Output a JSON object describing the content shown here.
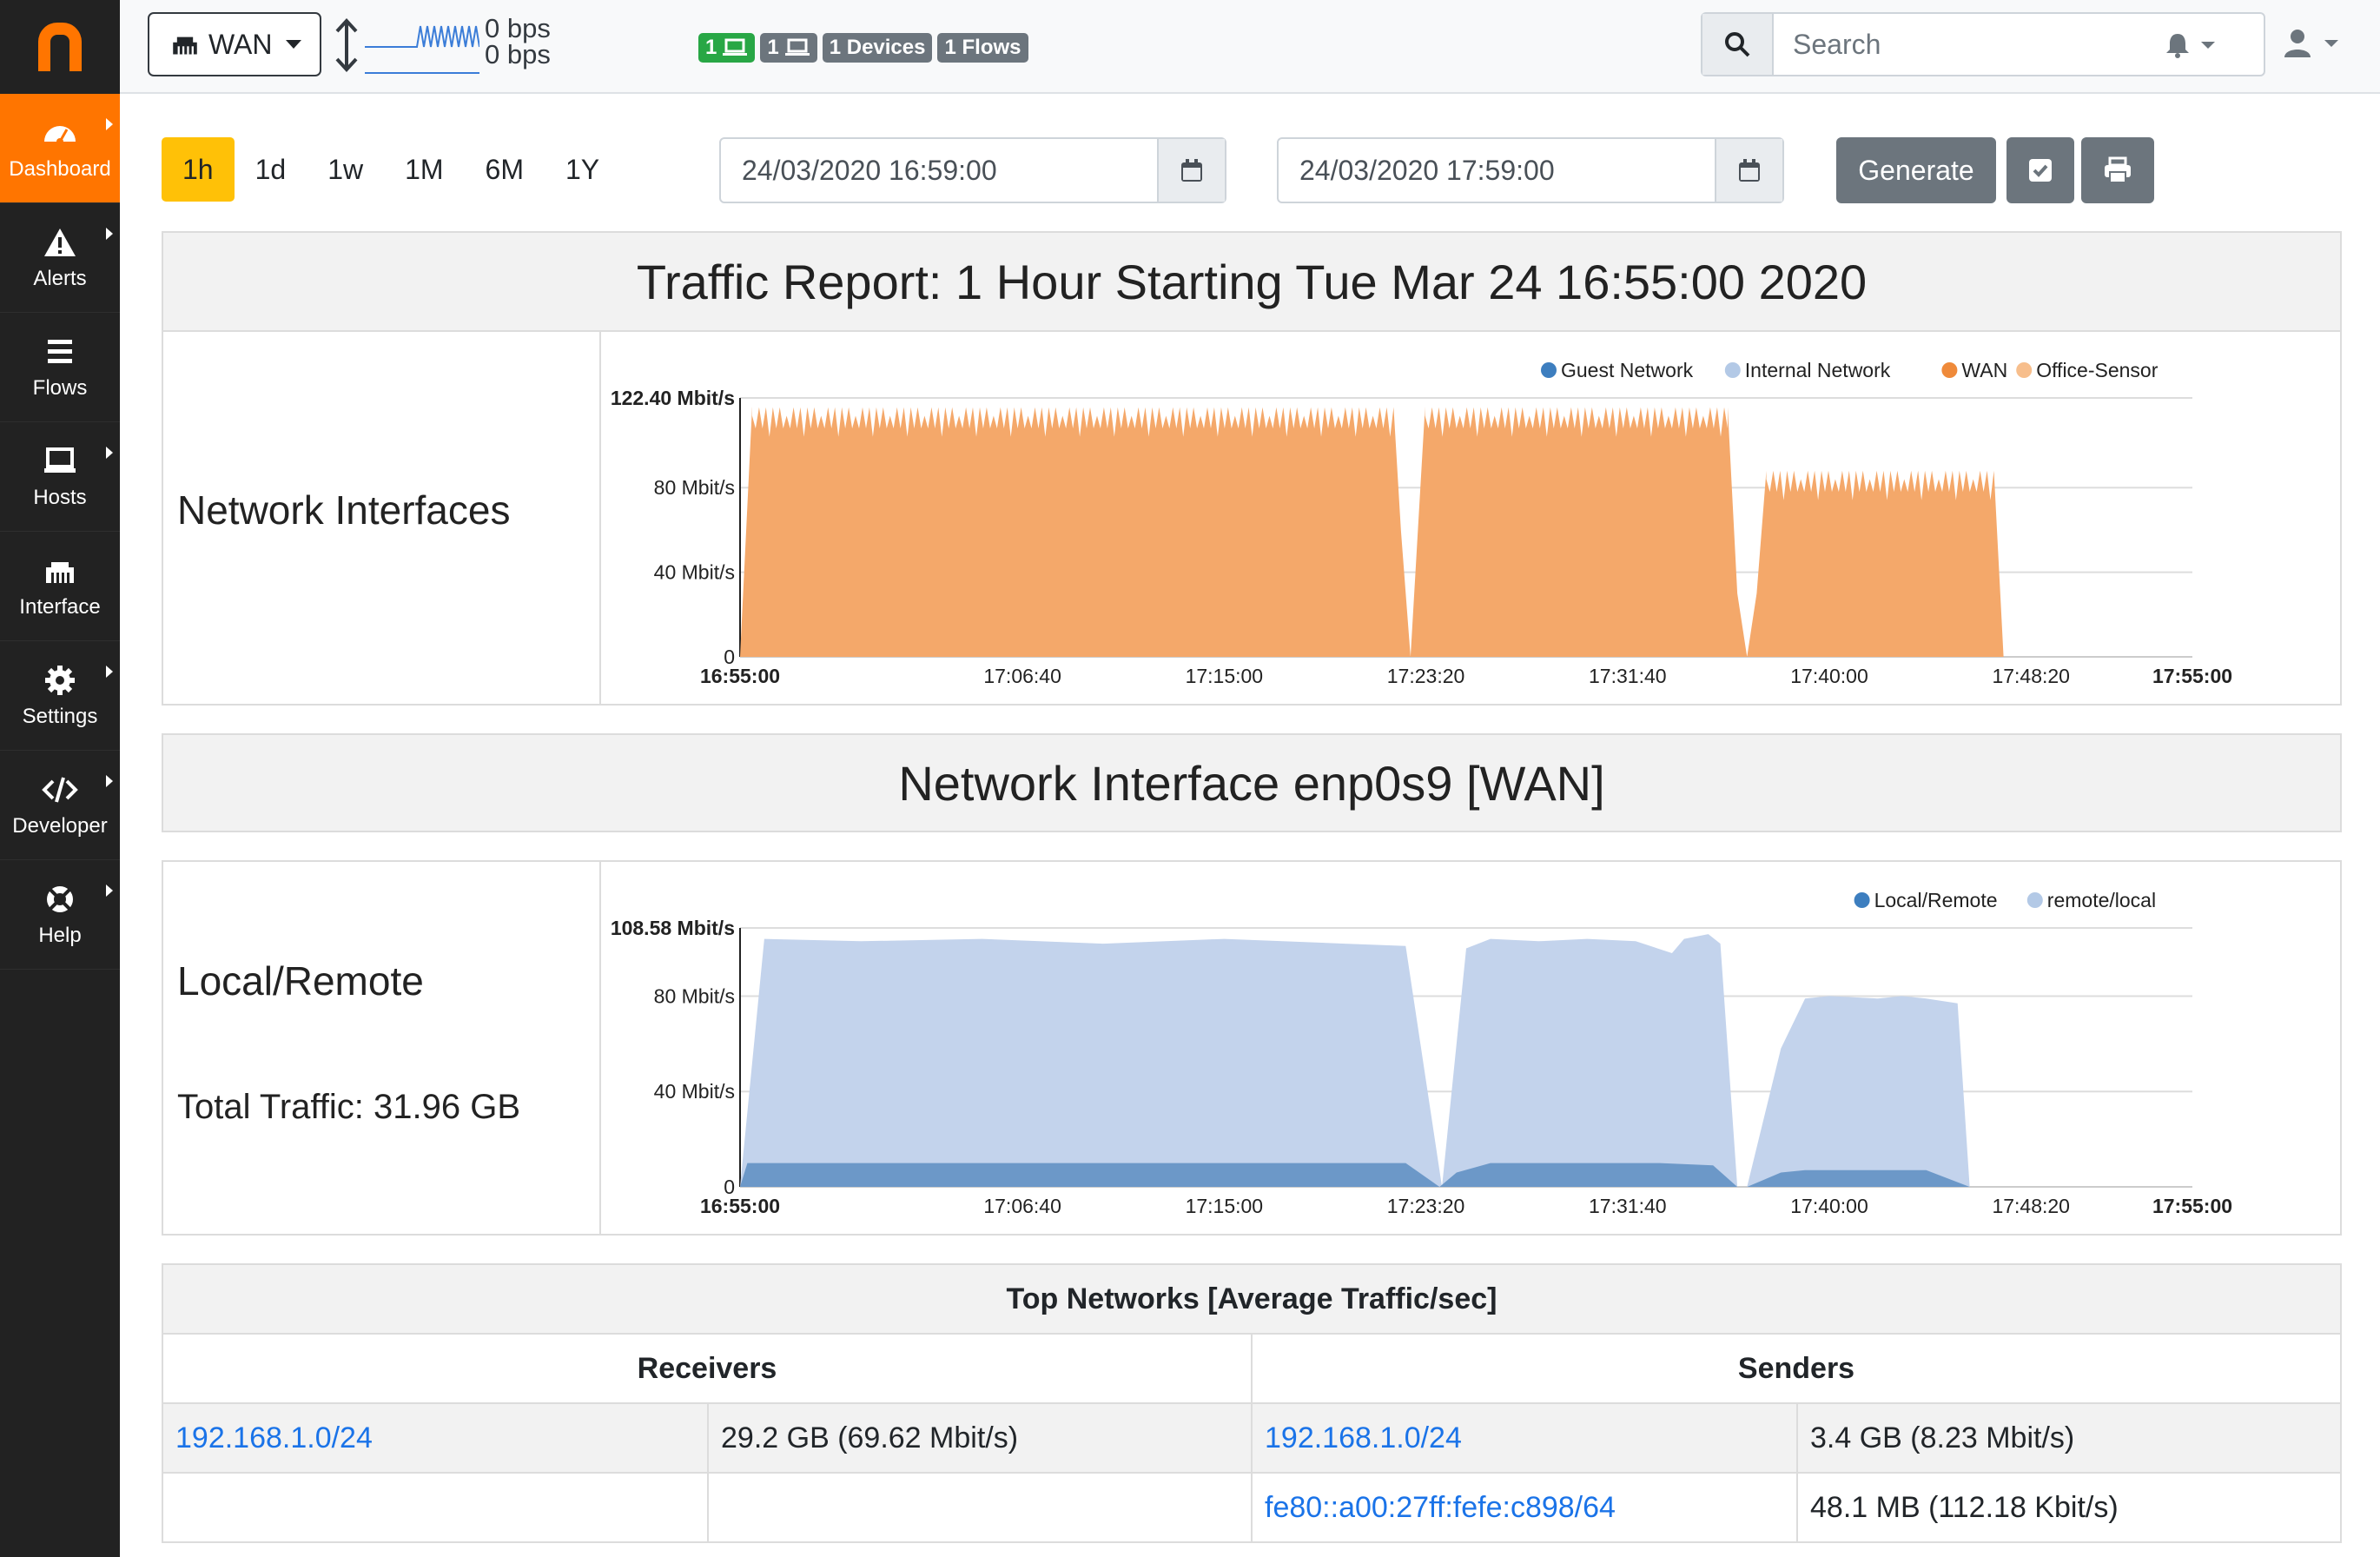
{
  "sidebar": {
    "logo": "n",
    "items": [
      {
        "label": "Dashboard",
        "icon": "gauge-icon",
        "active": true,
        "submenu": true
      },
      {
        "label": "Alerts",
        "icon": "warning-icon",
        "active": false,
        "submenu": true
      },
      {
        "label": "Flows",
        "icon": "list-icon",
        "active": false,
        "submenu": false
      },
      {
        "label": "Hosts",
        "icon": "laptop-icon",
        "active": false,
        "submenu": true
      },
      {
        "label": "Interface",
        "icon": "ethernet-icon",
        "active": false,
        "submenu": false
      },
      {
        "label": "Settings",
        "icon": "gear-icon",
        "active": false,
        "submenu": true
      },
      {
        "label": "Developer",
        "icon": "code-icon",
        "active": false,
        "submenu": true
      },
      {
        "label": "Help",
        "icon": "lifering-icon",
        "active": false,
        "submenu": true
      }
    ]
  },
  "topbar": {
    "interface_selector": "WAN",
    "upload_rate": "0 bps",
    "download_rate": "0 bps",
    "badges": [
      {
        "text": "1",
        "color": "#28a745",
        "icon": "laptop-icon"
      },
      {
        "text": "1",
        "color": "#6c757d",
        "icon": "laptop-icon"
      },
      {
        "text": "1 Devices",
        "color": "#6c757d"
      },
      {
        "text": "1 Flows",
        "color": "#6c757d"
      }
    ],
    "search_placeholder": "Search"
  },
  "range": {
    "buttons": [
      "1h",
      "1d",
      "1w",
      "1M",
      "6M",
      "1Y"
    ],
    "active": "1h",
    "start": "24/03/2020 16:59:00",
    "end": "24/03/2020 17:59:00",
    "generate_label": "Generate"
  },
  "report": {
    "title": "Traffic Report: 1 Hour Starting Tue Mar 24 16:55:00 2020",
    "section1_title": "Network Interfaces",
    "section2_header": "Network Interface enp0s9 [WAN]",
    "section3_title": "Local/Remote",
    "section3_total": "Total Traffic: 31.96 GB"
  },
  "chart_data": [
    {
      "type": "area",
      "ylabel": "",
      "ymax_label": "122.40 Mbit/s",
      "ylim": [
        0,
        122.4
      ],
      "yticks": [
        {
          "value": 0,
          "label": "0"
        },
        {
          "value": 40,
          "label": "40 Mbit/s"
        },
        {
          "value": 80,
          "label": "80 Mbit/s"
        },
        {
          "value": 122.4,
          "label": "122.40 Mbit/s"
        }
      ],
      "xticks": [
        "16:55:00",
        "17:06:40",
        "17:15:00",
        "17:23:20",
        "17:31:40",
        "17:40:00",
        "17:48:20",
        "17:55:00"
      ],
      "legend": [
        {
          "name": "Guest Network",
          "color": "#3d7ebf"
        },
        {
          "name": "Internal Network",
          "color": "#b3c9e6"
        },
        {
          "name": "WAN",
          "color": "#ef8a3a"
        },
        {
          "name": "Office-Sensor",
          "color": "#f7be8c"
        }
      ],
      "series": [
        {
          "name": "WAN",
          "color": "#f4a86a",
          "x_minutes": [
            0,
            0.5,
            27,
            27.3,
            27.7,
            28.3,
            40.8,
            41.2,
            41.6,
            42,
            42.4,
            51.8,
            52.2
          ],
          "values": [
            0,
            118,
            118,
            60,
            0,
            118,
            118,
            30,
            0,
            30,
            88,
            88,
            0
          ]
        }
      ]
    },
    {
      "type": "area",
      "ylabel": "",
      "ymax_label": "108.58 Mbit/s",
      "ylim": [
        0,
        108.58
      ],
      "yticks": [
        {
          "value": 0,
          "label": "0"
        },
        {
          "value": 40,
          "label": "40 Mbit/s"
        },
        {
          "value": 80,
          "label": "80 Mbit/s"
        },
        {
          "value": 108.58,
          "label": "108.58 Mbit/s"
        }
      ],
      "xticks": [
        "16:55:00",
        "17:06:40",
        "17:15:00",
        "17:23:20",
        "17:31:40",
        "17:40:00",
        "17:48:20",
        "17:55:00"
      ],
      "legend": [
        {
          "name": "Local/Remote",
          "color": "#3d7ebf"
        },
        {
          "name": "remote/local",
          "color": "#b3c9e6"
        }
      ],
      "series": [
        {
          "name": "remote/local",
          "color": "#c3d3ec",
          "x_minutes": [
            0,
            1,
            5,
            10,
            15,
            20,
            25,
            27.5,
            29,
            30,
            31,
            33,
            35,
            37,
            38.5,
            39,
            40,
            40.5,
            41.2,
            41.6,
            43,
            44,
            45,
            47,
            48,
            49,
            50.3,
            50.8
          ],
          "values": [
            0,
            104,
            103,
            104,
            102,
            104,
            102,
            101,
            0,
            100,
            104,
            103,
            104,
            103,
            98,
            104,
            106,
            102,
            0,
            0,
            58,
            79,
            80,
            79,
            80,
            79,
            77,
            0
          ]
        },
        {
          "name": "Local/Remote",
          "color": "#6c98c8",
          "x_minutes": [
            0,
            0.3,
            27.5,
            28.9,
            29.6,
            31,
            38,
            40.2,
            41.2,
            41.6,
            43,
            44,
            49,
            50.8
          ],
          "values": [
            0,
            10,
            10,
            0,
            6,
            10,
            10,
            9,
            0,
            0,
            6,
            7,
            7,
            0
          ]
        }
      ]
    }
  ],
  "top_networks": {
    "caption": "Top Networks [Average Traffic/sec]",
    "receivers_header": "Receivers",
    "senders_header": "Senders",
    "rows": [
      {
        "receiver": "192.168.1.0/24",
        "receiver_value": "29.2 GB (69.62 Mbit/s)",
        "sender": "192.168.1.0/24",
        "sender_value": "3.4 GB (8.23 Mbit/s)"
      },
      {
        "receiver": "",
        "receiver_value": "",
        "sender": "fe80::a00:27ff:fefe:c898/64",
        "sender_value": "48.1 MB (112.18 Kbit/s)"
      }
    ]
  }
}
